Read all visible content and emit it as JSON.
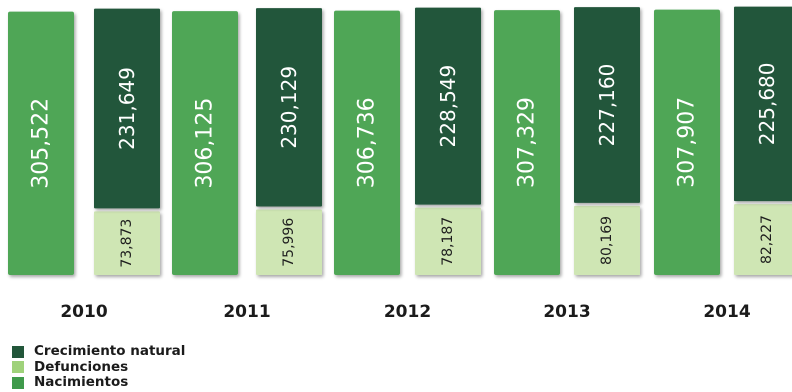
{
  "chart_data": {
    "type": "bar",
    "stacked": true,
    "categories": [
      "2010",
      "2011",
      "2012",
      "2013",
      "2014"
    ],
    "series": [
      {
        "name": "Nacimientos",
        "values": [
          305522,
          306125,
          306736,
          307329,
          307907
        ],
        "labels": [
          "305,522",
          "306,125",
          "306,736",
          "307,329",
          "307,907"
        ],
        "color": "#4fa657"
      },
      {
        "name": "Defunciones",
        "values": [
          73873,
          75996,
          78187,
          80169,
          82227
        ],
        "labels": [
          "73,873",
          "75,996",
          "78,187",
          "80,169",
          "82,227"
        ],
        "color": "#cfe6b4"
      },
      {
        "name": "Crecimiento natural",
        "values": [
          231649,
          230129,
          228549,
          227160,
          225680
        ],
        "labels": [
          "231,649",
          "230,129",
          "228,549",
          "227,160",
          "225,680"
        ],
        "color": "#22563a"
      }
    ],
    "legend": {
      "position": "bottom-left",
      "order": [
        "Crecimiento natural",
        "Defunciones",
        "Nacimientos"
      ]
    }
  }
}
